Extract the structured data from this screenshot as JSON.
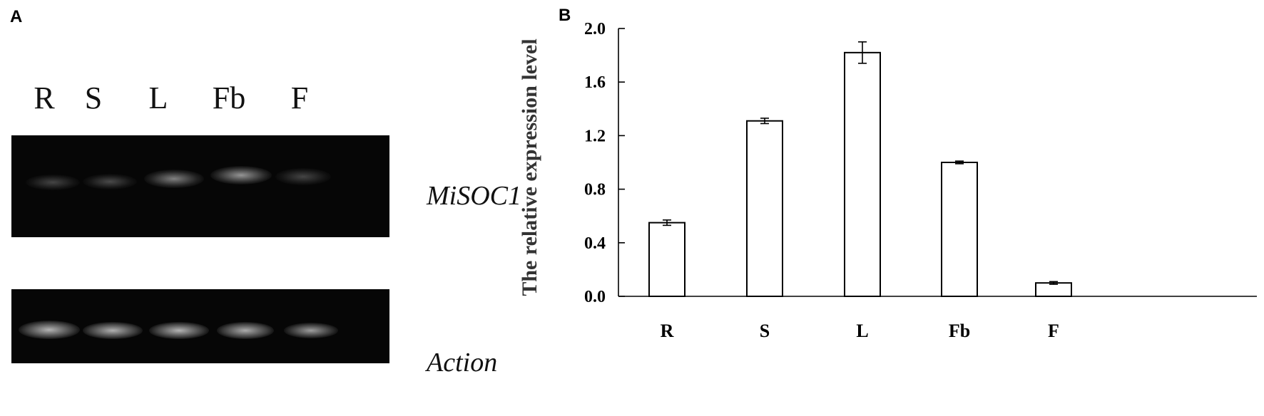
{
  "panel_a": {
    "label": "A",
    "lanes": [
      "R",
      "S",
      "L",
      "Fb",
      "F"
    ],
    "genes": [
      "MiSOC1",
      "Action"
    ]
  },
  "panel_b": {
    "label": "B"
  },
  "chart_data": {
    "type": "bar",
    "categories": [
      "R",
      "S",
      "L",
      "Fb",
      "F"
    ],
    "values": [
      0.55,
      1.31,
      1.82,
      1.0,
      0.1
    ],
    "errors": [
      0.02,
      0.02,
      0.08,
      0.01,
      0.01
    ],
    "title": "",
    "xlabel": "",
    "ylabel": "The relative expression level",
    "ylim": [
      0,
      2.0
    ],
    "yticks": [
      "0.0",
      "0.4",
      "0.8",
      "1.2",
      "1.6",
      "2.0"
    ],
    "grid": false,
    "colors": {
      "bar_fill": "#ffffff",
      "bar_stroke": "#000000"
    }
  }
}
